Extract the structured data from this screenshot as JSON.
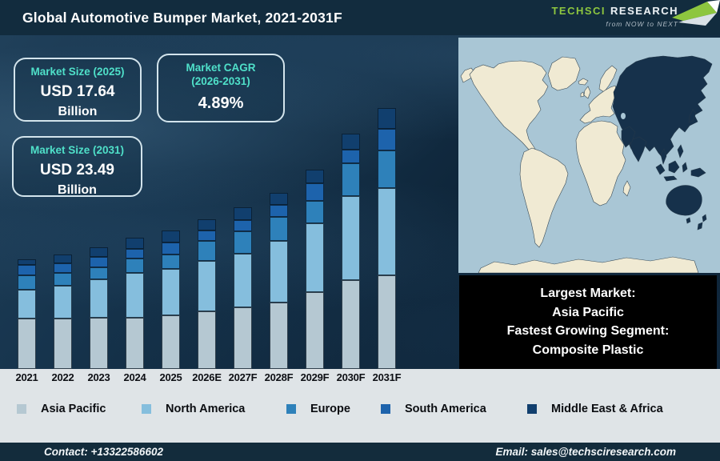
{
  "header": {
    "title": "Global Automotive Bumper Market, 2021-2031F",
    "logo": {
      "brand_primary": "TechSci",
      "brand_secondary": "Research",
      "tagline": "from NOW to NEXT"
    }
  },
  "stats": [
    {
      "label": "Market Size (2025)",
      "value": "USD 17.64",
      "unit": "Billion"
    },
    {
      "label_line1": "Market CAGR",
      "label_line2": "(2026-2031)",
      "value": "4.89%"
    },
    {
      "label": "Market Size (2031)",
      "value": "USD 23.49",
      "unit": "Billion"
    }
  ],
  "chart_data": {
    "type": "bar",
    "stacked": true,
    "title": "Global Automotive Bumper Market, 2021-2031F",
    "xlabel": "",
    "ylabel": "",
    "grid": false,
    "legend_position": "bottom",
    "categories": [
      "2021",
      "2022",
      "2023",
      "2024",
      "2025",
      "2026E",
      "2027F",
      "2028F",
      "2029F",
      "2030F",
      "2031F"
    ],
    "series": [
      {
        "name": "Asia Pacific",
        "color": "#b5c8d2",
        "values": [
          63,
          63,
          64,
          64,
          67,
          72,
          77,
          83,
          96,
          111,
          117
        ]
      },
      {
        "name": "North America",
        "color": "#85bedd",
        "values": [
          36,
          41,
          48,
          56,
          58,
          63,
          67,
          77,
          86,
          105,
          109
        ]
      },
      {
        "name": "Europe",
        "color": "#2e81ba",
        "values": [
          18,
          16,
          15,
          18,
          18,
          25,
          28,
          30,
          28,
          41,
          47
        ]
      },
      {
        "name": "South America",
        "color": "#1d63ac",
        "values": [
          13,
          12,
          13,
          12,
          15,
          13,
          14,
          15,
          22,
          17,
          27
        ]
      },
      {
        "name": "Middle East & Africa",
        "color": "#113f6e",
        "values": [
          7,
          11,
          12,
          14,
          15,
          14,
          16,
          15,
          17,
          20,
          26
        ]
      }
    ],
    "units": "relative stacked-bar heights in pixels (no numeric y-axis shown in figure)",
    "notes": "Totals grow from 2021 to 2031F; labeled market size: USD 17.64 Bn (2025), USD 23.49 Bn (2031), CAGR 4.89% (2026-2031)"
  },
  "map": {
    "description": "World map with Asia Pacific region highlighted dark",
    "highlighted_region": "Asia Pacific"
  },
  "callout": {
    "lines": [
      "Largest Market:",
      "Asia Pacific",
      "Fastest Growing Segment:",
      "Composite Plastic"
    ]
  },
  "footer": {
    "contact": "Contact: +13322586602",
    "email": "Email: sales@techsciresearch.com"
  },
  "colors": {
    "accent_teal": "#4fe0c9",
    "header_bg": "#122c3e",
    "chart_bg": "#102b40",
    "strip_bg": "#dfe4e7",
    "footer_bg": "#132c3c",
    "callout_bg": "#000000",
    "logo_green": "#8dc63f",
    "map_ocean": "#a9c6d5",
    "map_land": "#f0ead3",
    "map_dark": "#16314b"
  }
}
